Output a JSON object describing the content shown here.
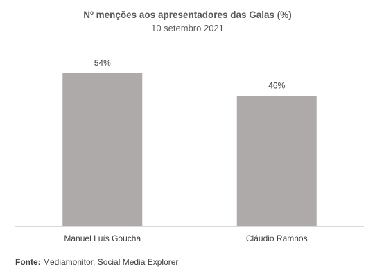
{
  "chart_data": {
    "type": "bar",
    "title": "Nº menções aos apresentadores das Galas (%)",
    "subtitle": "10 setembro 2021",
    "categories": [
      "Manuel Luís Goucha",
      "Cláudio Ramnos"
    ],
    "values": [
      54,
      46
    ],
    "data_labels": [
      "54%",
      "46%"
    ],
    "ylim": [
      0,
      80
    ],
    "xlabel": "",
    "ylabel": "",
    "grid": false,
    "legend": "none",
    "bar_color": "#aeaaaa",
    "axis_color": "#d9d9d9"
  },
  "source": {
    "label": "Fonte:",
    "text": " Mediamonitor, Social Media Explorer"
  }
}
